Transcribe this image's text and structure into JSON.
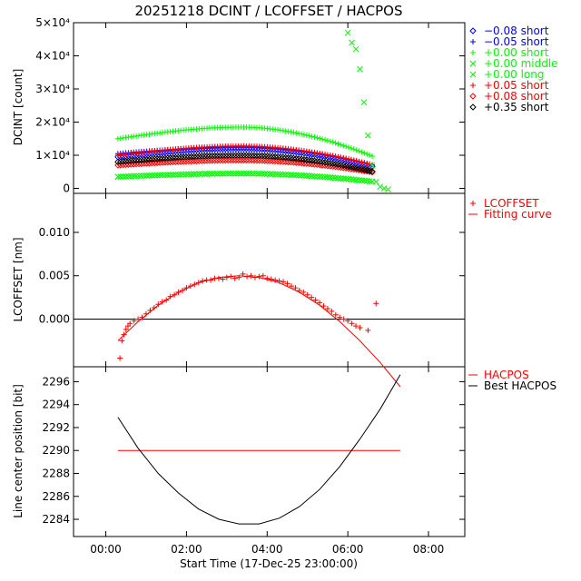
{
  "chart_data": [
    {
      "type": "scatter",
      "title": "20251218 DCINT / LCOFFSET / HACPOS",
      "xlabel": "",
      "ylabel": "DCINT [count]",
      "xlim": [
        -0.8,
        8.9
      ],
      "ylim": [
        -1500,
        50000
      ],
      "yticks": [
        {
          "v": 0,
          "label": "0"
        },
        {
          "v": 10000,
          "label": "1×10⁴"
        },
        {
          "v": 20000,
          "label": "2×10⁴"
        },
        {
          "v": 30000,
          "label": "3×10⁴"
        },
        {
          "v": 40000,
          "label": "4×10⁴"
        },
        {
          "v": 50000,
          "label": "5×10⁴"
        }
      ],
      "legend_position": "right",
      "series": [
        {
          "name": "−0.08 short",
          "color": "#0000ff",
          "marker": "diamond",
          "peak": 12000,
          "start": 9500,
          "end": 6500
        },
        {
          "name": "−0.05 short",
          "color": "#0000ff",
          "marker": "plus",
          "peak": 12500,
          "start": 10500,
          "end": 7000
        },
        {
          "name": "+0.00 short",
          "color": "#00ff00",
          "marker": "plus",
          "peak": 18500,
          "start": 15000,
          "end": 9500
        },
        {
          "name": "+0.00 middle",
          "color": "#00ff00",
          "marker": "cross",
          "peak": 4500,
          "start": 3500,
          "end": 2000
        },
        {
          "name": "+0.00 long",
          "color": "#00ff00",
          "marker": "cross",
          "peak": 4500,
          "start": 3500,
          "end": 2000
        },
        {
          "name": "+0.05 short",
          "color": "#ff0000",
          "marker": "plus",
          "peak": 12800,
          "start": 10000,
          "end": 7000
        },
        {
          "name": "+0.08 short",
          "color": "#ff0000",
          "marker": "diamond",
          "peak": 8500,
          "start": 7000,
          "end": 4800
        },
        {
          "name": "+0.35 short",
          "color": "#000000",
          "marker": "diamond",
          "peak": 10000,
          "start": 8000,
          "end": 5000
        }
      ],
      "x_range": [
        0.3,
        6.65
      ],
      "spike": {
        "x": [
          6.0,
          6.1,
          6.2,
          6.3,
          6.4,
          6.5,
          6.6,
          6.7,
          6.8,
          6.9,
          7.0
        ],
        "y": [
          47000,
          44000,
          42000,
          36000,
          26000,
          16000,
          7000,
          2000,
          500,
          0,
          -300
        ]
      }
    },
    {
      "type": "scatter",
      "xlabel": "",
      "ylabel": "LCOFFSET [nm]",
      "xlim": [
        -0.8,
        8.9
      ],
      "ylim": [
        -0.0055,
        0.0145
      ],
      "yticks": [
        {
          "v": 0,
          "label": "0.000"
        },
        {
          "v": 0.005,
          "label": "0.005"
        },
        {
          "v": 0.01,
          "label": "0.010"
        }
      ],
      "zero_line": 0,
      "series": [
        {
          "name": "LCOFFSET",
          "color": "#ff0000",
          "marker": "plus"
        },
        {
          "name": "Fitting curve",
          "color": "#ff0000",
          "marker": "line"
        }
      ],
      "points": {
        "x": [
          0.35,
          0.4,
          0.45,
          0.5,
          0.55,
          0.6,
          0.7,
          0.8,
          0.9,
          1.0,
          1.1,
          1.2,
          1.3,
          1.4,
          1.5,
          1.6,
          1.7,
          1.8,
          1.9,
          2.0,
          2.1,
          2.2,
          2.3,
          2.4,
          2.5,
          2.6,
          2.7,
          2.8,
          2.9,
          3.0,
          3.1,
          3.2,
          3.3,
          3.4,
          3.5,
          3.6,
          3.7,
          3.8,
          3.9,
          4.0,
          4.1,
          4.2,
          4.3,
          4.4,
          4.5,
          4.6,
          4.7,
          4.8,
          4.9,
          5.0,
          5.1,
          5.2,
          5.3,
          5.4,
          5.5,
          5.6,
          5.7,
          5.8,
          5.9,
          6.0,
          6.1,
          6.2,
          6.3,
          6.5,
          6.7
        ],
        "y": [
          -0.0045,
          -0.0025,
          -0.0018,
          -0.0012,
          -0.0008,
          -0.0005,
          -0.0002,
          0.0,
          0.0002,
          0.0006,
          0.001,
          0.0013,
          0.0017,
          0.002,
          0.0022,
          0.0026,
          0.0028,
          0.0031,
          0.0033,
          0.0036,
          0.0038,
          0.004,
          0.0042,
          0.0044,
          0.0045,
          0.0045,
          0.0047,
          0.0047,
          0.0046,
          0.0048,
          0.0049,
          0.0047,
          0.0048,
          0.0052,
          0.0049,
          0.005,
          0.0048,
          0.0049,
          0.005,
          0.0047,
          0.0046,
          0.0045,
          0.0044,
          0.0043,
          0.0041,
          0.0038,
          0.0036,
          0.0033,
          0.0031,
          0.0028,
          0.0025,
          0.0022,
          0.0019,
          0.0015,
          0.0012,
          0.0009,
          0.0005,
          0.0002,
          0.0,
          -0.0002,
          -0.0005,
          -0.0008,
          -0.001,
          -0.0013,
          0.0018
        ]
      },
      "fit": {
        "x": [
          0.3,
          0.8,
          1.3,
          1.8,
          2.3,
          2.8,
          3.3,
          3.8,
          4.3,
          4.8,
          5.3,
          5.8,
          6.3,
          6.8,
          7.3
        ],
        "y": [
          -0.0025,
          -0.0003,
          0.0016,
          0.0031,
          0.0042,
          0.0048,
          0.005,
          0.0048,
          0.0042,
          0.0031,
          0.0016,
          -0.0003,
          -0.0025,
          -0.005,
          -0.0078
        ]
      }
    },
    {
      "type": "line",
      "xlabel": "Start Time (17-Dec-25 23:00:00)",
      "ylabel": "Line center position [bit]",
      "xlim": [
        -0.8,
        8.9
      ],
      "ylim": [
        2282.5,
        2297.3
      ],
      "xticks": [
        {
          "v": 0,
          "label": "00:00"
        },
        {
          "v": 2,
          "label": "02:00"
        },
        {
          "v": 4,
          "label": "04:00"
        },
        {
          "v": 6,
          "label": "06:00"
        },
        {
          "v": 8,
          "label": "08:00"
        }
      ],
      "yticks": [
        {
          "v": 2284,
          "label": "2284"
        },
        {
          "v": 2286,
          "label": "2286"
        },
        {
          "v": 2288,
          "label": "2288"
        },
        {
          "v": 2290,
          "label": "2290"
        },
        {
          "v": 2292,
          "label": "2292"
        },
        {
          "v": 2294,
          "label": "2294"
        },
        {
          "v": 2296,
          "label": "2296"
        }
      ],
      "series": [
        {
          "name": "HACPOS",
          "color": "#ff0000",
          "x": [
            0.3,
            7.3
          ],
          "y": [
            2290,
            2290
          ]
        },
        {
          "name": "Best HACPOS",
          "color": "#000000",
          "x": [
            0.3,
            0.8,
            1.3,
            1.8,
            2.3,
            2.8,
            3.3,
            3.8,
            4.3,
            4.8,
            5.3,
            5.8,
            6.3,
            6.8,
            7.3
          ],
          "y": [
            2292.9,
            2290.2,
            2288.0,
            2286.3,
            2284.9,
            2284.0,
            2283.6,
            2283.6,
            2284.1,
            2285.1,
            2286.6,
            2288.6,
            2291.0,
            2293.6,
            2296.6
          ]
        }
      ]
    }
  ]
}
